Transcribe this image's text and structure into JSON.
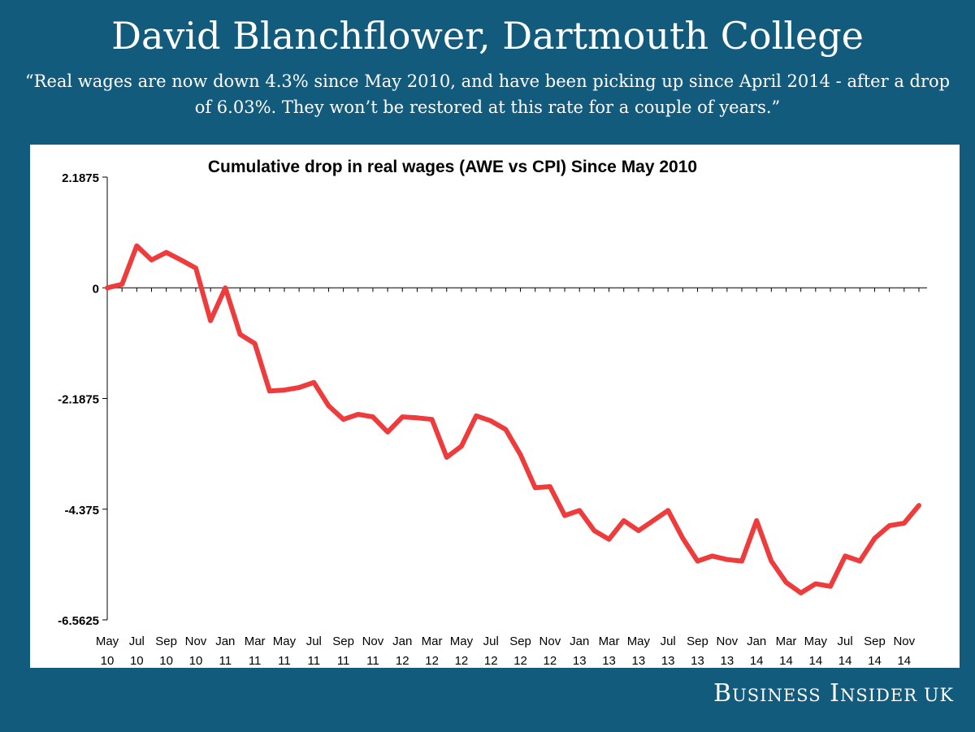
{
  "headline": "David Blanchflower, Dartmouth College",
  "quote": "“Real wages are now down 4.3% since May 2010, and have been picking up since April 2014 - after a drop of 6.03%. They won’t be restored at this rate for a couple of years.”",
  "brand": {
    "name": "Business Insider",
    "suffix": "UK"
  },
  "colors": {
    "background": "#135b7d",
    "line": "#ee3b3b",
    "panel": "#ffffff"
  },
  "chart_data": {
    "type": "line",
    "title": "Cumulative drop in real wages (AWE vs CPI) Since May 2010",
    "xlabel": "",
    "ylabel": "",
    "ylim": [
      -6.5625,
      2.1875
    ],
    "yticks": [
      "2.1875",
      "0",
      "-2.1875",
      "-4.375",
      "-6.5625"
    ],
    "ytick_values": [
      2.1875,
      0,
      -2.1875,
      -4.375,
      -6.5625
    ],
    "grid": false,
    "legend": "none",
    "x_tick_labels": [
      [
        "May",
        "10"
      ],
      [
        "Jul",
        "10"
      ],
      [
        "Sep",
        "10"
      ],
      [
        "Nov",
        "10"
      ],
      [
        "Jan",
        "11"
      ],
      [
        "Mar",
        "11"
      ],
      [
        "May",
        "11"
      ],
      [
        "Jul",
        "11"
      ],
      [
        "Sep",
        "11"
      ],
      [
        "Nov",
        "11"
      ],
      [
        "Jan",
        "12"
      ],
      [
        "Mar",
        "12"
      ],
      [
        "May",
        "12"
      ],
      [
        "Jul",
        "12"
      ],
      [
        "Sep",
        "12"
      ],
      [
        "Nov",
        "12"
      ],
      [
        "Jan",
        "13"
      ],
      [
        "Mar",
        "13"
      ],
      [
        "May",
        "13"
      ],
      [
        "Jul",
        "13"
      ],
      [
        "Sep",
        "13"
      ],
      [
        "Nov",
        "13"
      ],
      [
        "Jan",
        "14"
      ],
      [
        "Mar",
        "14"
      ],
      [
        "May",
        "14"
      ],
      [
        "Jul",
        "14"
      ],
      [
        "Sep",
        "14"
      ],
      [
        "Nov",
        "14"
      ]
    ],
    "x": [
      "May 10",
      "Jun 10",
      "Jul 10",
      "Aug 10",
      "Sep 10",
      "Oct 10",
      "Nov 10",
      "Dec 10",
      "Jan 11",
      "Feb 11",
      "Mar 11",
      "Apr 11",
      "May 11",
      "Jun 11",
      "Jul 11",
      "Aug 11",
      "Sep 11",
      "Oct 11",
      "Nov 11",
      "Dec 11",
      "Jan 12",
      "Feb 12",
      "Mar 12",
      "Apr 12",
      "May 12",
      "Jun 12",
      "Jul 12",
      "Aug 12",
      "Sep 12",
      "Oct 12",
      "Nov 12",
      "Dec 12",
      "Jan 13",
      "Feb 13",
      "Mar 13",
      "Apr 13",
      "May 13",
      "Jun 13",
      "Jul 13",
      "Aug 13",
      "Sep 13",
      "Oct 13",
      "Nov 13",
      "Dec 13",
      "Jan 14",
      "Feb 14",
      "Mar 14",
      "Apr 14",
      "May 14",
      "Jun 14",
      "Jul 14",
      "Aug 14",
      "Sep 14",
      "Oct 14",
      "Nov 14",
      "Dec 14"
    ],
    "series": [
      {
        "values": [
          0,
          0.07,
          0.83,
          0.55,
          0.7,
          0.55,
          0.39,
          -0.65,
          0,
          -0.92,
          -1.1,
          -2.04,
          -2.02,
          -1.97,
          -1.87,
          -2.33,
          -2.6,
          -2.5,
          -2.55,
          -2.85,
          -2.55,
          -2.57,
          -2.6,
          -3.35,
          -3.13,
          -2.53,
          -2.63,
          -2.8,
          -3.3,
          -3.95,
          -3.93,
          -4.5,
          -4.4,
          -4.8,
          -4.97,
          -4.6,
          -4.8,
          -4.6,
          -4.4,
          -4.95,
          -5.4,
          -5.3,
          -5.37,
          -5.4,
          -4.6,
          -5.4,
          -5.82,
          -6.03,
          -5.85,
          -5.9,
          -5.3,
          -5.4,
          -4.95,
          -4.7,
          -4.65,
          -4.3
        ]
      }
    ]
  }
}
